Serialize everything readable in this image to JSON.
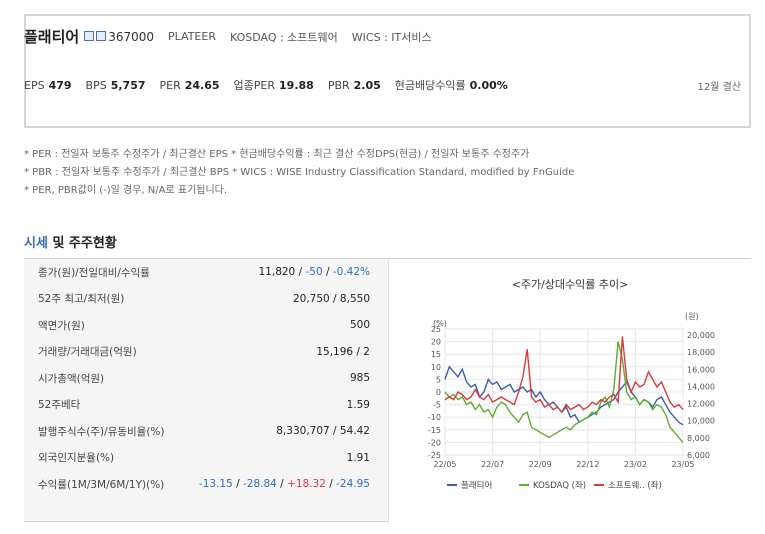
{
  "header": {
    "company_name": "플래티어",
    "code": "367000",
    "english_name": "PLATEER",
    "market": "KOSDAQ : 소프트웨어",
    "wics": "WICS : IT서비스",
    "indicators": [
      {
        "label": "EPS",
        "value": "479"
      },
      {
        "label": "BPS",
        "value": "5,757"
      },
      {
        "label": "PER",
        "value": "24.65"
      },
      {
        "label": "업종PER",
        "value": "19.88"
      },
      {
        "label": "PBR",
        "value": "2.05"
      },
      {
        "label": "현금배당수익률",
        "value": "0.00%"
      }
    ],
    "settlement": "12월 결산"
  },
  "notes": [
    "* PER : 전일자 보통주 수정주가 / 최근결산 EPS * 현금배당수익률 : 최근 결산 수정DPS(현금) / 전일자 보통주 수정주가",
    "* PBR : 전일자 보통주 수정주가 / 최근결산 BPS * WICS : WISE Industry Classification Standard, modified by FnGuide",
    "* PER, PBR값이 (-)일 경우, N/A로 표기됩니다."
  ],
  "section": {
    "title_highlight": "시세",
    "title_rest": " 및 주주현황"
  },
  "table": {
    "row_close": {
      "label": "종가(원)/전일대비/수익률",
      "v1": "11,820",
      "v2": "-50",
      "v3": "-0.42%"
    },
    "row_52w": {
      "label": "52주 최고/최저(원)",
      "value": "20,750 / 8,550"
    },
    "row_par": {
      "label": "액면가(원)",
      "value": "500"
    },
    "row_volume": {
      "label": "거래량/거래대금(억원)",
      "value": "15,196 / 2"
    },
    "row_mcap": {
      "label": "시가총액(억원)",
      "value": "985"
    },
    "row_beta": {
      "label": "52주베타",
      "value": "1.59"
    },
    "row_shares": {
      "label": "발행주식수(주)/유동비율(%)",
      "value": "8,330,707 / 54.42"
    },
    "row_foreign": {
      "label": "외국인지분율(%)",
      "value": "1.91"
    },
    "row_returns": {
      "label": "수익률(1M/3M/6M/1Y)(%)",
      "r1": "-13.15",
      "r2": "-28.84",
      "r3": "+18.32",
      "r4": "-24.95"
    }
  },
  "chart_data": {
    "type": "line",
    "title": "<주가/상대수익률 추이>",
    "left_axis_unit": "(%)",
    "right_axis_unit": "(원)",
    "left_ylim": [
      -25,
      25
    ],
    "right_ylim": [
      6000,
      20000
    ],
    "left_ticks": [
      25,
      20,
      15,
      10,
      5,
      0,
      -5,
      -10,
      -15,
      -20,
      -25
    ],
    "right_ticks": [
      "20,000",
      "18,000",
      "16,000",
      "14,000",
      "12,000",
      "10,000",
      "8,000",
      "6,000"
    ],
    "x_labels": [
      "22/05",
      "22/07",
      "22/09",
      "22/12",
      "23/02",
      "23/05"
    ],
    "series": [
      {
        "name": "플래티어",
        "color": "#3a5fa8",
        "values": [
          5,
          10,
          8,
          6,
          9,
          4,
          2,
          3,
          -2,
          0,
          5,
          3,
          4,
          1,
          2,
          3,
          0,
          1,
          2,
          0,
          1,
          -2,
          0,
          -3,
          -5,
          -4,
          -6,
          -8,
          -6,
          -10,
          -9,
          -12,
          -11,
          -10,
          -9,
          -8,
          -6,
          -5,
          -4,
          -3,
          0,
          2,
          4,
          0,
          -2,
          -5,
          -3,
          -4,
          -6,
          -3,
          -2,
          -5,
          -8,
          -10,
          -12,
          -13
        ]
      },
      {
        "name": "KOSDAQ (좌)",
        "color": "#5cae2e",
        "values": [
          0,
          -2,
          -1,
          -3,
          -2,
          -5,
          -4,
          -7,
          -5,
          -8,
          -7,
          -10,
          -6,
          -4,
          -5,
          -8,
          -10,
          -12,
          -9,
          -8,
          -14,
          -15,
          -16,
          -17,
          -18,
          -17,
          -16,
          -15,
          -14,
          -15,
          -13,
          -12,
          -11,
          -10,
          -8,
          -9,
          -4,
          -2,
          -6,
          1,
          20,
          13,
          0,
          -3,
          -2,
          -5,
          -3,
          -4,
          -7,
          -5,
          -6,
          -9,
          -14,
          -16,
          -18,
          -20
        ]
      },
      {
        "name": "소프트웨.. (좌)",
        "color": "#d73a3a",
        "values": [
          -3,
          -2,
          -3,
          0,
          -1,
          -3,
          -2,
          1,
          -2,
          -3,
          -1,
          -4,
          -3,
          -2,
          -3,
          -4,
          -5,
          0,
          6,
          17,
          -2,
          -4,
          -3,
          -6,
          -5,
          -7,
          -6,
          -8,
          -5,
          -7,
          -6,
          -5,
          -7,
          -6,
          -4,
          -5,
          -3,
          -4,
          -2,
          -1,
          -4,
          22,
          5,
          0,
          4,
          2,
          3,
          8,
          5,
          2,
          4,
          0,
          -4,
          -6,
          -5,
          -7
        ]
      }
    ]
  }
}
